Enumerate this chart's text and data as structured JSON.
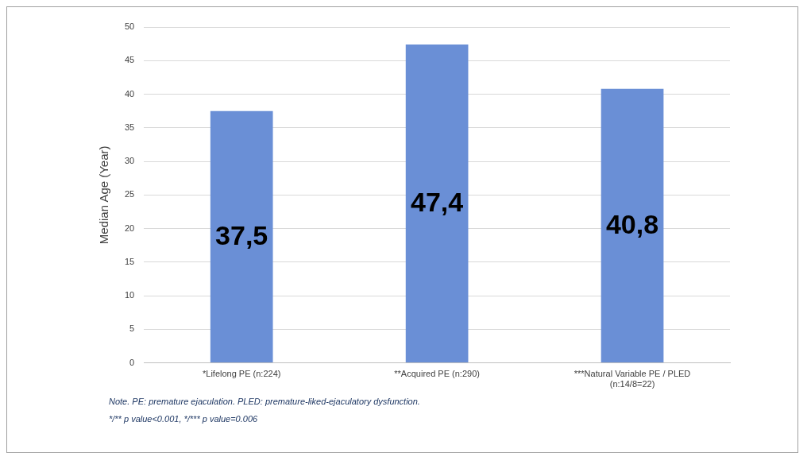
{
  "chart_data": {
    "type": "bar",
    "categories": [
      "*Lifelong PE (n:224)",
      "**Acquired PE (n:290)",
      "***Natural Variable PE / PLED (n:14/8=22)"
    ],
    "values": [
      37.5,
      47.4,
      40.8
    ],
    "value_labels": [
      "37,5",
      "47,4",
      "40,8"
    ],
    "color": "#6a8fd6",
    "ylabel": "Median Age (Year)",
    "ylim": [
      0,
      50
    ],
    "yticks": [
      0,
      5,
      10,
      15,
      20,
      25,
      30,
      35,
      40,
      45,
      50
    ],
    "grid": "y",
    "legend": false,
    "annotations": [
      "Note. PE: premature ejaculation. PLED: premature-liked-ejaculatory dysfunction.",
      "*/** p value<0.001, */*** p value=0.006"
    ]
  }
}
